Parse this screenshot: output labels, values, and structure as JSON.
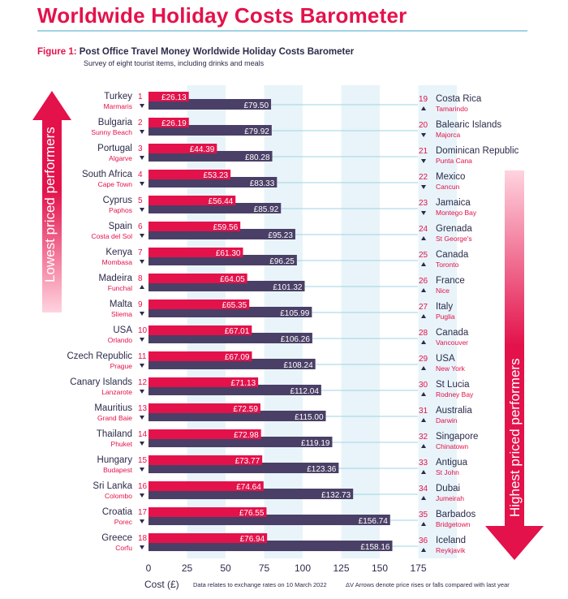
{
  "header": {
    "title": "Worldwide Holiday Costs Barometer",
    "figure_label": "Figure 1:",
    "figure_title": "Post Office Travel Money Worldwide Holiday Costs Barometer",
    "subtitle": "Survey of eight tourist items, including drinks and meals"
  },
  "side_labels": {
    "left": "Lowest priced performers",
    "right": "Highest priced performers"
  },
  "footer": {
    "xlabel": "Cost (£)",
    "note_date": "Data relates to exchange rates on 10 March 2022",
    "note_arrows": "Arrows denote price rises or falls compared with last year",
    "arrow_glyphs": "ΔV"
  },
  "colors": {
    "accent": "#e3124b",
    "secondary_bar": "#4a3f66",
    "band": "#e8f4f9",
    "leader": "#9fd3e4"
  },
  "chart_data": {
    "type": "bar",
    "orientation": "horizontal",
    "xlabel": "Cost (£)",
    "xlim": [
      0,
      175
    ],
    "xticks": [
      0,
      25,
      50,
      75,
      100,
      125,
      150,
      175
    ],
    "series": [
      {
        "name": "Rank 1-18",
        "color": "#e3124b",
        "values": [
          26.13,
          26.19,
          44.39,
          53.23,
          56.44,
          59.56,
          61.3,
          64.05,
          65.35,
          67.01,
          67.09,
          71.13,
          72.59,
          72.98,
          73.77,
          74.64,
          76.55,
          76.94
        ]
      },
      {
        "name": "Rank 19-36",
        "color": "#4a3f66",
        "values": [
          79.5,
          79.92,
          80.28,
          83.33,
          85.92,
          95.23,
          96.25,
          101.32,
          105.99,
          106.26,
          108.24,
          112.04,
          115.0,
          119.19,
          123.36,
          132.73,
          156.74,
          158.16
        ]
      }
    ],
    "value_labels_left": [
      "£26.13",
      "£26.19",
      "£44.39",
      "£53.23",
      "£56.44",
      "£59.56",
      "£61.30",
      "£64.05",
      "£65.35",
      "£67.01",
      "£67.09",
      "£71.13",
      "£72.59",
      "£72.98",
      "£73.77",
      "£74.64",
      "£76.55",
      "£76.94"
    ],
    "value_labels_right": [
      "£79.50",
      "£79.92",
      "£80.28",
      "£83.33",
      "£85.92",
      "£95.23",
      "£96.25",
      "£101.32",
      "£105.99",
      "£106.26",
      "£108.24",
      "£112.04",
      "£115.00",
      "£119.19",
      "£123.36",
      "£132.73",
      "£156.74",
      "£158.16"
    ],
    "left_entries": [
      {
        "rank": "1",
        "country": "Turkey",
        "city": "Marmaris",
        "trend": "down"
      },
      {
        "rank": "2",
        "country": "Bulgaria",
        "city": "Sunny Beach",
        "trend": "down"
      },
      {
        "rank": "3",
        "country": "Portugal",
        "city": "Algarve",
        "trend": "down"
      },
      {
        "rank": "4",
        "country": "South Africa",
        "city": "Cape Town",
        "trend": "down"
      },
      {
        "rank": "5",
        "country": "Cyprus",
        "city": "Paphos",
        "trend": "down"
      },
      {
        "rank": "6",
        "country": "Spain",
        "city": "Costa del Sol",
        "trend": "down"
      },
      {
        "rank": "7",
        "country": "Kenya",
        "city": "Mombasa",
        "trend": "down"
      },
      {
        "rank": "8",
        "country": "Madeira",
        "city": "Funchal",
        "trend": "up"
      },
      {
        "rank": "9",
        "country": "Malta",
        "city": "Sliema",
        "trend": "down"
      },
      {
        "rank": "10",
        "country": "USA",
        "city": "Orlando",
        "trend": "down"
      },
      {
        "rank": "11",
        "country": "Czech Republic",
        "city": "Prague",
        "trend": "down"
      },
      {
        "rank": "12",
        "country": "Canary Islands",
        "city": "Lanzarote",
        "trend": "down"
      },
      {
        "rank": "13",
        "country": "Mauritius",
        "city": "Grand Baie",
        "trend": "down"
      },
      {
        "rank": "14",
        "country": "Thailand",
        "city": "Phuket",
        "trend": "down"
      },
      {
        "rank": "15",
        "country": "Hungary",
        "city": "Budapest",
        "trend": "down"
      },
      {
        "rank": "16",
        "country": "Sri Lanka",
        "city": "Colombo",
        "trend": "down"
      },
      {
        "rank": "17",
        "country": "Croatia",
        "city": "Porec",
        "trend": "down"
      },
      {
        "rank": "18",
        "country": "Greece",
        "city": "Corfu",
        "trend": "down"
      }
    ],
    "right_entries": [
      {
        "rank": "19",
        "country": "Costa Rica",
        "city": "Tamarindo",
        "trend": "up"
      },
      {
        "rank": "20",
        "country": "Balearic Islands",
        "city": "Majorca",
        "trend": "down"
      },
      {
        "rank": "21",
        "country": "Dominican Republic",
        "city": "Punta Cana",
        "trend": "down"
      },
      {
        "rank": "22",
        "country": "Mexico",
        "city": "Cancun",
        "trend": "down"
      },
      {
        "rank": "23",
        "country": "Jamaica",
        "city": "Montego Bay",
        "trend": "down"
      },
      {
        "rank": "24",
        "country": "Grenada",
        "city": "St George's",
        "trend": "up"
      },
      {
        "rank": "25",
        "country": "Canada",
        "city": "Toronto",
        "trend": "up"
      },
      {
        "rank": "26",
        "country": "France",
        "city": "Nice",
        "trend": "up"
      },
      {
        "rank": "27",
        "country": "Italy",
        "city": "Puglia",
        "trend": "up"
      },
      {
        "rank": "28",
        "country": "Canada",
        "city": "Vancouver",
        "trend": "up"
      },
      {
        "rank": "29",
        "country": "USA",
        "city": "New York",
        "trend": "up"
      },
      {
        "rank": "30",
        "country": "St Lucia",
        "city": "Rodney Bay",
        "trend": "up"
      },
      {
        "rank": "31",
        "country": "Australia",
        "city": "Darwin",
        "trend": "up"
      },
      {
        "rank": "32",
        "country": "Singapore",
        "city": "Chinatown",
        "trend": "up"
      },
      {
        "rank": "33",
        "country": "Antigua",
        "city": "St John",
        "trend": "up"
      },
      {
        "rank": "34",
        "country": "Dubai",
        "city": "Jumeirah",
        "trend": "up"
      },
      {
        "rank": "35",
        "country": "Barbados",
        "city": "Bridgetown",
        "trend": "up"
      },
      {
        "rank": "36",
        "country": "Iceland",
        "city": "Reykjavik",
        "trend": "up"
      }
    ]
  }
}
